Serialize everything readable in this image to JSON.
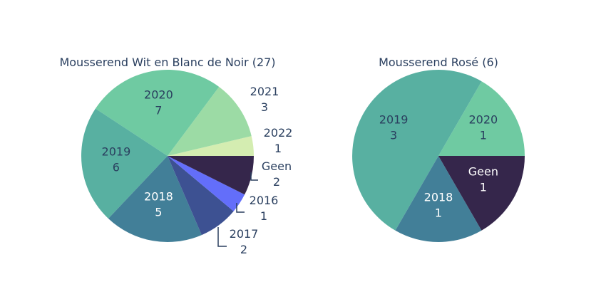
{
  "chart_data": [
    {
      "type": "pie",
      "title": "Mousserend Wit en Blanc de Noir (27)",
      "labels": [
        "2022",
        "2021",
        "2020",
        "2019",
        "2018",
        "2017",
        "2016",
        "Geen"
      ],
      "values": [
        1,
        3,
        7,
        6,
        5,
        2,
        1,
        2
      ],
      "colors": [
        "#d4edb1",
        "#9cdba5",
        "#6fcaa2",
        "#58b0a1",
        "#427f98",
        "#3d5192",
        "#636efa",
        "#35264b"
      ],
      "text_colors": [
        "#2a3f5f",
        "#2a3f5f",
        "#2a3f5f",
        "#2a3f5f",
        "#ffffff",
        "#2a3f5f",
        "#2a3f5f",
        "#2a3f5f"
      ],
      "text_position": [
        "outside",
        "outside",
        "inside",
        "inside",
        "inside",
        "outside",
        "outside",
        "outside"
      ],
      "direction": "counterclockwise",
      "start_angle_deg": 0
    },
    {
      "type": "pie",
      "title": "Mousserend Rosé (6)",
      "labels": [
        "2020",
        "2019",
        "2018",
        "Geen"
      ],
      "values": [
        1,
        3,
        1,
        1
      ],
      "colors": [
        "#6fcaa2",
        "#58b0a1",
        "#427f98",
        "#35264b"
      ],
      "text_colors": [
        "#2a3f5f",
        "#2a3f5f",
        "#ffffff",
        "#ffffff"
      ],
      "text_position": [
        "inside",
        "inside",
        "inside",
        "inside"
      ],
      "direction": "counterclockwise",
      "start_angle_deg": 0
    }
  ]
}
